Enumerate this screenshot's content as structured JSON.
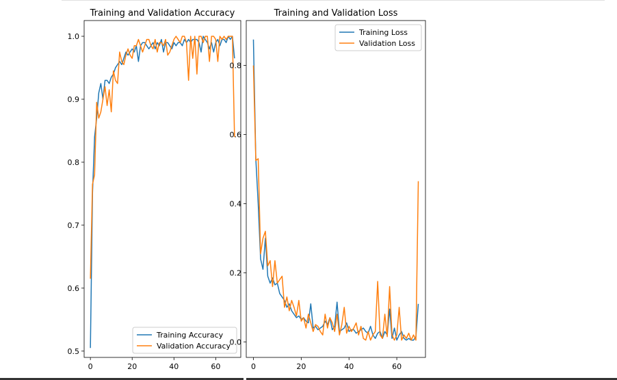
{
  "chart_data": [
    {
      "type": "line",
      "title": "Training and Validation Accuracy",
      "xlabel": "",
      "ylabel": "",
      "xlim": [
        -3,
        72
      ],
      "ylim": [
        0.49,
        1.025
      ],
      "xticks": [
        0,
        20,
        40,
        60
      ],
      "yticks": [
        0.5,
        0.6,
        0.7,
        0.8,
        0.9,
        1.0
      ],
      "xtick_labels": [
        "0",
        "20",
        "40",
        "60"
      ],
      "ytick_labels": [
        "0.5",
        "0.6",
        "0.7",
        "0.8",
        "0.9",
        "1.0"
      ],
      "legend": {
        "placement": "lower-right",
        "entries": [
          "Training Accuracy",
          "Validation Accuracy"
        ]
      },
      "grid": false,
      "x": [
        0,
        1,
        2,
        3,
        4,
        5,
        6,
        7,
        8,
        9,
        10,
        11,
        12,
        13,
        14,
        15,
        16,
        17,
        18,
        19,
        20,
        21,
        22,
        23,
        24,
        25,
        26,
        27,
        28,
        29,
        30,
        31,
        32,
        33,
        34,
        35,
        36,
        37,
        38,
        39,
        40,
        41,
        42,
        43,
        44,
        45,
        46,
        47,
        48,
        49,
        50,
        51,
        52,
        53,
        54,
        55,
        56,
        57,
        58,
        59,
        60,
        61,
        62,
        63,
        64,
        65,
        66,
        67,
        68,
        69
      ],
      "series": [
        {
          "name": "Training Accuracy",
          "color": "#1f77b4",
          "values": [
            0.505,
            0.75,
            0.84,
            0.87,
            0.91,
            0.925,
            0.9,
            0.93,
            0.93,
            0.925,
            0.935,
            0.94,
            0.95,
            0.955,
            0.96,
            0.955,
            0.965,
            0.975,
            0.97,
            0.975,
            0.98,
            0.975,
            0.985,
            0.96,
            0.985,
            0.99,
            0.99,
            0.985,
            0.98,
            0.985,
            0.99,
            0.98,
            0.99,
            0.985,
            0.995,
            0.975,
            0.99,
            0.99,
            0.985,
            0.98,
            0.99,
            0.985,
            0.99,
            0.99,
            0.985,
            0.995,
            0.99,
            0.995,
            0.99,
            0.995,
            0.995,
            0.995,
            0.99,
            0.975,
            1.0,
            0.995,
            0.99,
            0.98,
            0.99,
            0.975,
            0.99,
            0.995,
            0.985,
            0.995,
            0.995,
            0.99,
            1.0,
            0.995,
            1.0,
            0.965
          ]
        },
        {
          "name": "Validation Accuracy",
          "color": "#ff7f0e",
          "values": [
            0.615,
            0.765,
            0.78,
            0.895,
            0.87,
            0.88,
            0.9,
            0.92,
            0.89,
            0.915,
            0.88,
            0.945,
            0.93,
            0.925,
            0.975,
            0.96,
            0.955,
            0.97,
            0.98,
            0.97,
            0.965,
            0.985,
            0.985,
            0.995,
            0.985,
            0.975,
            0.985,
            0.995,
            0.995,
            0.985,
            0.98,
            0.995,
            0.975,
            0.99,
            0.99,
            0.985,
            0.995,
            0.97,
            0.975,
            0.985,
            0.995,
            1.0,
            0.995,
            0.99,
            1.0,
            1.0,
            0.99,
            0.93,
            1.0,
            0.965,
            1.0,
            0.94,
            1.0,
            1.0,
            0.99,
            1.0,
            1.0,
            0.96,
            1.0,
            1.0,
            0.995,
            0.96,
            1.0,
            0.995,
            1.0,
            0.995,
            1.0,
            1.0,
            1.0,
            0.84
          ]
        }
      ]
    },
    {
      "type": "line",
      "title": "Training and Validation Loss",
      "xlabel": "",
      "ylabel": "",
      "xlim": [
        -3,
        72
      ],
      "ylim": [
        -0.045,
        0.93
      ],
      "xticks": [
        0,
        20,
        40,
        60
      ],
      "yticks": [
        0.0,
        0.2,
        0.4,
        0.6,
        0.8
      ],
      "xtick_labels": [
        "0",
        "20",
        "40",
        "60"
      ],
      "ytick_labels": [
        "0.0",
        "0.2",
        "0.4",
        "0.6",
        "0.8"
      ],
      "legend": {
        "placement": "upper-right",
        "entries": [
          "Training Loss",
          "Validation Loss"
        ]
      },
      "grid": false,
      "x": [
        0,
        1,
        2,
        3,
        4,
        5,
        6,
        7,
        8,
        9,
        10,
        11,
        12,
        13,
        14,
        15,
        16,
        17,
        18,
        19,
        20,
        21,
        22,
        23,
        24,
        25,
        26,
        27,
        28,
        29,
        30,
        31,
        32,
        33,
        34,
        35,
        36,
        37,
        38,
        39,
        40,
        41,
        42,
        43,
        44,
        45,
        46,
        47,
        48,
        49,
        50,
        51,
        52,
        53,
        54,
        55,
        56,
        57,
        58,
        59,
        60,
        61,
        62,
        63,
        64,
        65,
        66,
        67,
        68,
        69
      ],
      "series": [
        {
          "name": "Training Loss",
          "color": "#1f77b4",
          "values": [
            0.875,
            0.53,
            0.4,
            0.24,
            0.21,
            0.3,
            0.19,
            0.17,
            0.185,
            0.165,
            0.17,
            0.14,
            0.13,
            0.12,
            0.1,
            0.11,
            0.09,
            0.08,
            0.07,
            0.075,
            0.065,
            0.07,
            0.06,
            0.055,
            0.11,
            0.04,
            0.045,
            0.035,
            0.04,
            0.045,
            0.06,
            0.05,
            0.07,
            0.035,
            0.045,
            0.115,
            0.03,
            0.035,
            0.04,
            0.055,
            0.03,
            0.035,
            0.035,
            0.025,
            0.03,
            0.035,
            0.04,
            0.03,
            0.025,
            0.045,
            0.02,
            0.01,
            0.025,
            0.03,
            0.01,
            0.03,
            0.02,
            0.095,
            0.01,
            0.04,
            0.005,
            0.02,
            0.03,
            0.01,
            0.005,
            0.01,
            0.005,
            0.005,
            0.015,
            0.11
          ]
        },
        {
          "name": "Validation Loss",
          "color": "#ff7f0e",
          "values": [
            0.8,
            0.525,
            0.53,
            0.255,
            0.3,
            0.32,
            0.22,
            0.235,
            0.16,
            0.235,
            0.17,
            0.18,
            0.19,
            0.1,
            0.13,
            0.09,
            0.12,
            0.1,
            0.075,
            0.12,
            0.06,
            0.07,
            0.04,
            0.08,
            0.055,
            0.03,
            0.05,
            0.045,
            0.03,
            0.02,
            0.08,
            0.04,
            0.07,
            0.055,
            0.03,
            0.08,
            0.02,
            0.05,
            0.1,
            0.025,
            0.045,
            0.03,
            0.04,
            0.055,
            0.02,
            0.045,
            0.01,
            0.005,
            0.03,
            0.005,
            0.02,
            0.03,
            0.175,
            0.02,
            0.01,
            0.08,
            0.015,
            0.16,
            0.02,
            0.005,
            0.02,
            0.1,
            0.005,
            0.02,
            0.01,
            0.025,
            0.005,
            0.02,
            0.005,
            0.465
          ]
        }
      ]
    }
  ]
}
